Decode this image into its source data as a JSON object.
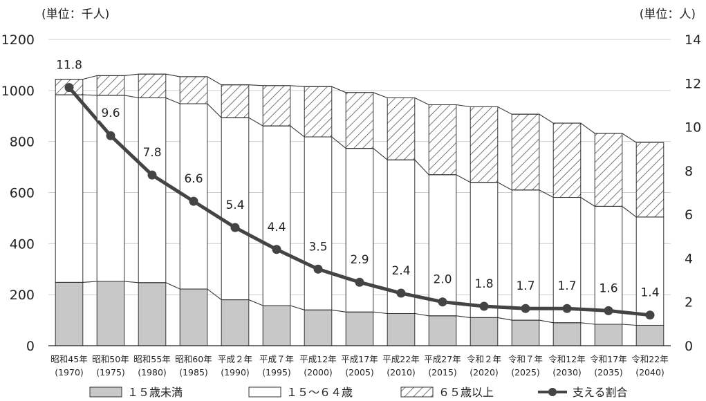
{
  "chart_data": {
    "type": "bar",
    "stacked": true,
    "left_axis": {
      "unit_label": "(単位：千人)",
      "ylim": [
        0,
        1200
      ],
      "ticks": [
        0,
        200,
        400,
        600,
        800,
        1000,
        1200
      ]
    },
    "right_axis": {
      "unit_label": "(単位：人)",
      "ylim": [
        0,
        14
      ],
      "ticks": [
        0,
        2,
        4,
        6,
        8,
        10,
        12,
        14
      ]
    },
    "categories": [
      {
        "era": "昭和45年",
        "year": "(1970)"
      },
      {
        "era": "昭和50年",
        "year": "(1975)"
      },
      {
        "era": "昭和55年",
        "year": "(1980)"
      },
      {
        "era": "昭和60年",
        "year": "(1985)"
      },
      {
        "era": "平成２年",
        "year": "(1990)"
      },
      {
        "era": "平成７年",
        "year": "(1995)"
      },
      {
        "era": "平成12年",
        "year": "(2000)"
      },
      {
        "era": "平成17年",
        "year": "(2005)"
      },
      {
        "era": "平成22年",
        "year": "(2010)"
      },
      {
        "era": "平成27年",
        "year": "(2015)"
      },
      {
        "era": "令和２年",
        "year": "(2020)"
      },
      {
        "era": "令和７年",
        "year": "(2025)"
      },
      {
        "era": "令和12年",
        "year": "(2030)"
      },
      {
        "era": "令和17年",
        "year": "(2035)"
      },
      {
        "era": "令和22年",
        "year": "(2040)"
      }
    ],
    "series": [
      {
        "name": "１５歳未満",
        "kind": "bar",
        "fill": "#c8c8c8",
        "values": [
          248,
          252,
          247,
          222,
          180,
          157,
          140,
          132,
          126,
          117,
          110,
          100,
          90,
          84,
          80
        ]
      },
      {
        "name": "１５～６４歳",
        "kind": "bar",
        "fill": "#ffffff",
        "values": [
          735,
          729,
          724,
          726,
          713,
          704,
          678,
          641,
          602,
          553,
          530,
          510,
          491,
          462,
          424
        ]
      },
      {
        "name": "６５歳以上",
        "kind": "bar",
        "fill": "hatch",
        "values": [
          61,
          77,
          93,
          106,
          129,
          158,
          197,
          219,
          243,
          274,
          296,
          297,
          291,
          286,
          292
        ]
      },
      {
        "name": "支える割合",
        "kind": "line",
        "axis": "right",
        "color": "#444444",
        "values": [
          11.8,
          9.6,
          7.8,
          6.6,
          5.4,
          4.4,
          3.5,
          2.9,
          2.4,
          2.0,
          1.8,
          1.7,
          1.7,
          1.6,
          1.4
        ],
        "labels": [
          "11.8",
          "9.6",
          "7.8",
          "6.6",
          "5.4",
          "4.4",
          "3.5",
          "2.9",
          "2.4",
          "2.0",
          "1.8",
          "1.7",
          "1.7",
          "1.6",
          "1.4"
        ]
      }
    ],
    "legend_position": "bottom",
    "grid": true
  }
}
